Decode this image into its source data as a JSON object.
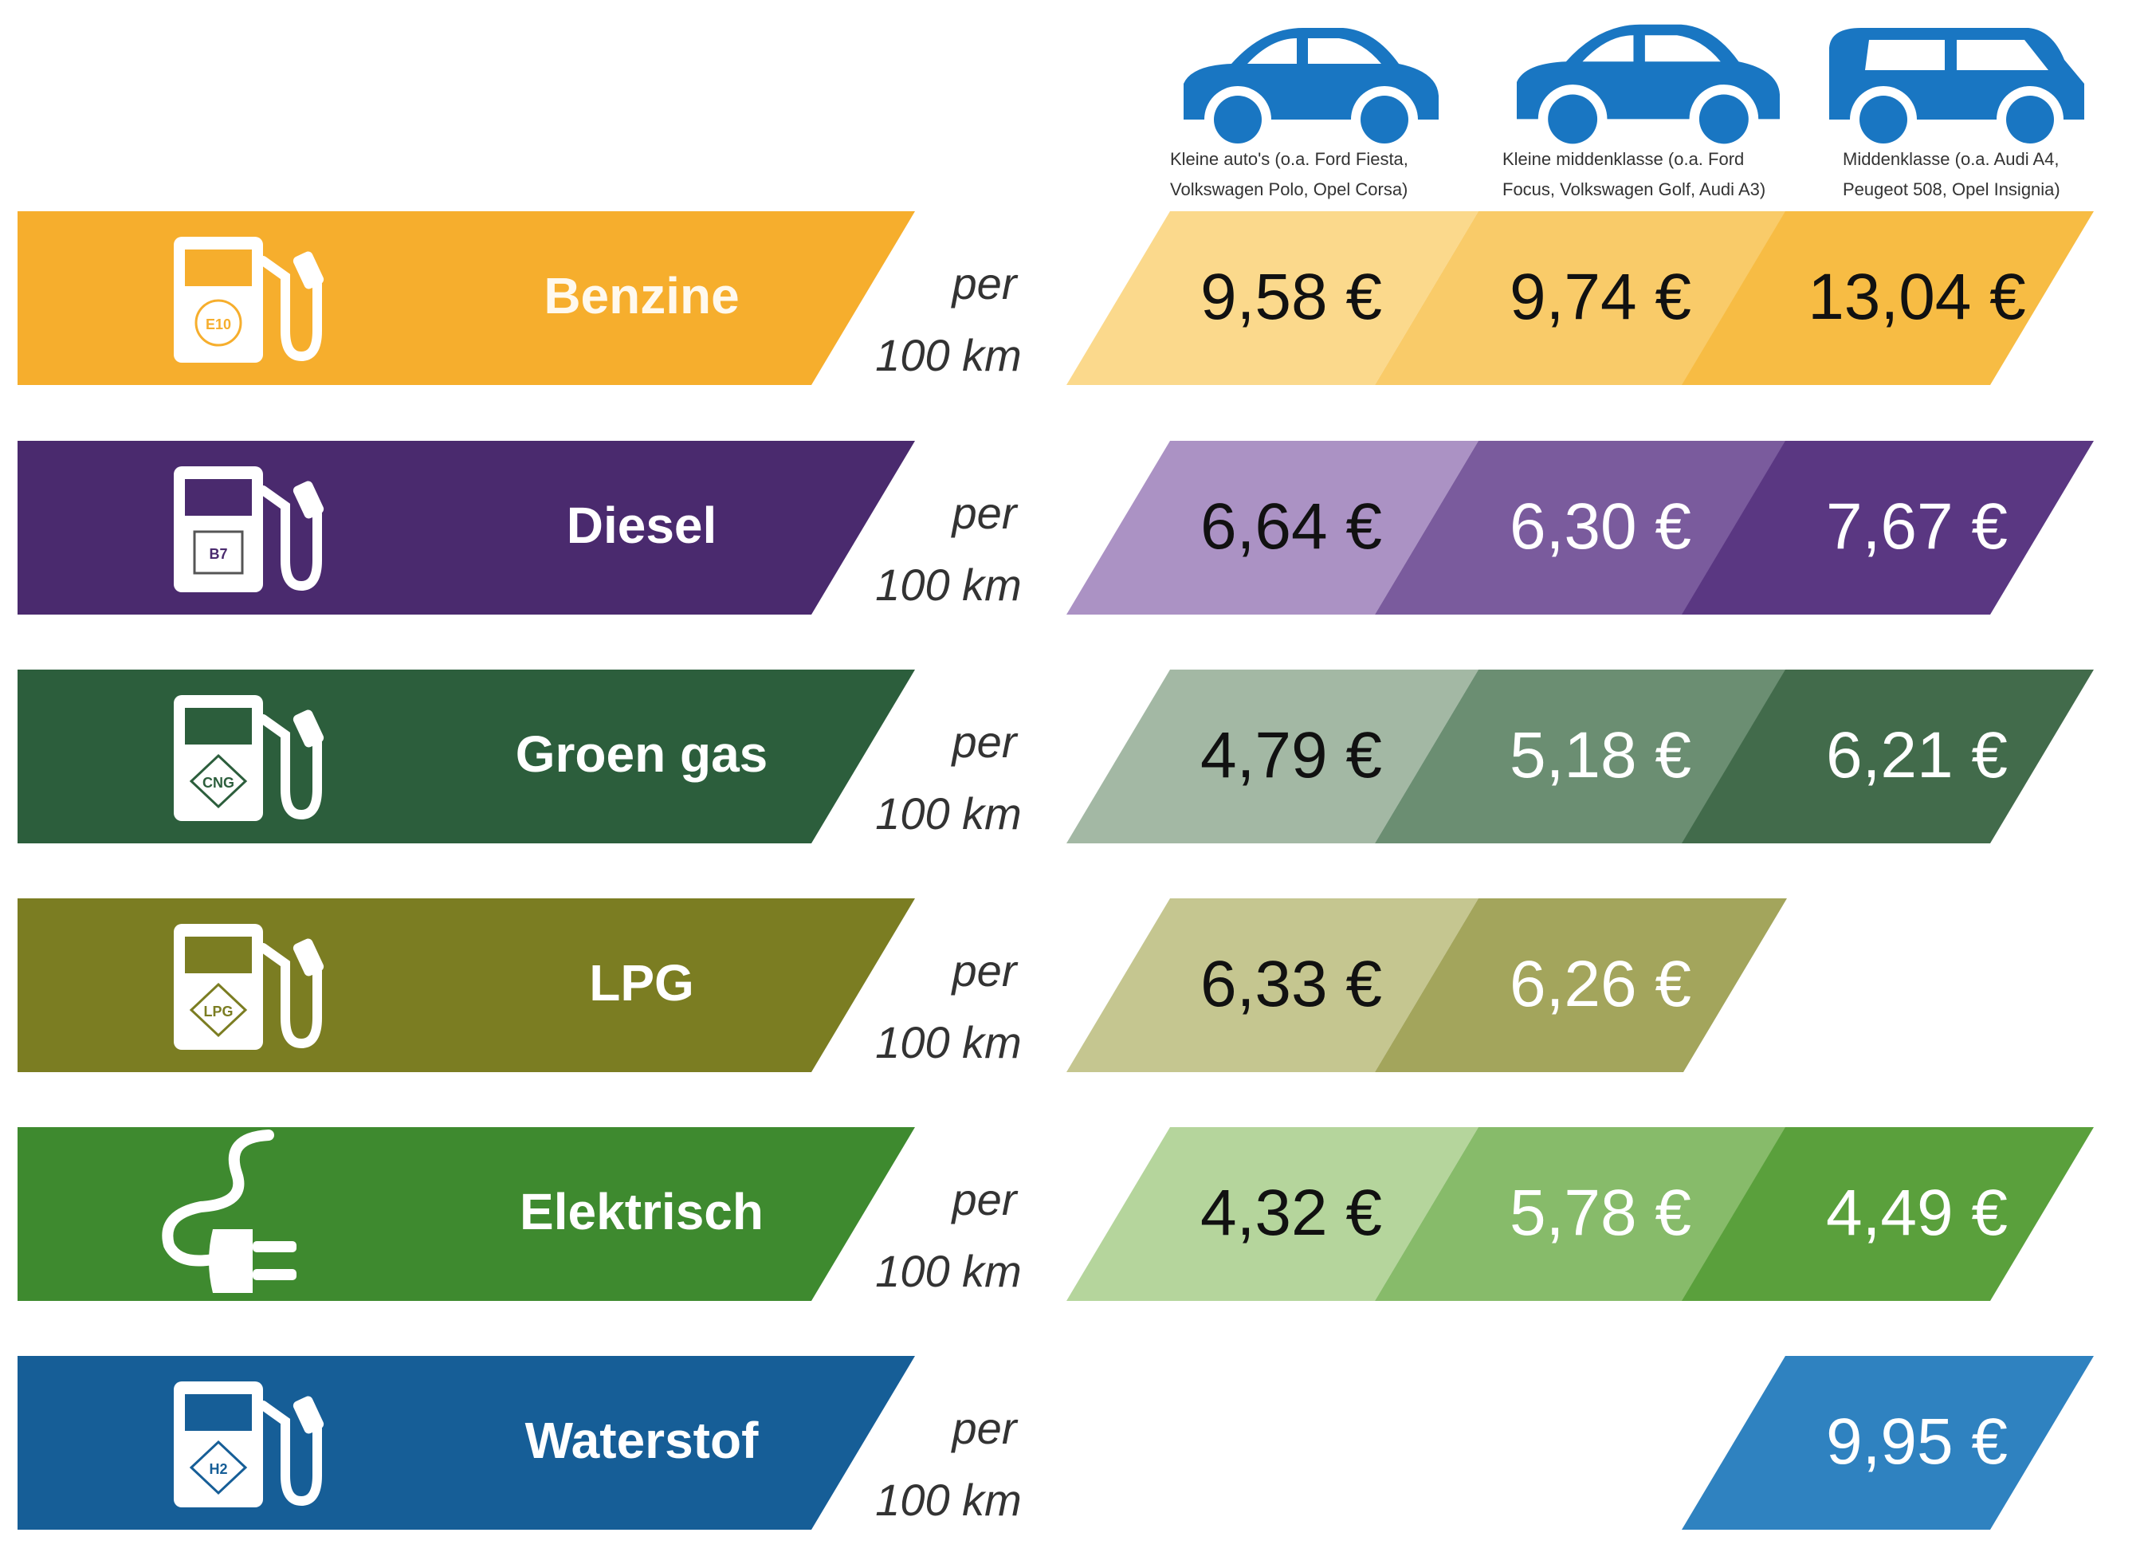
{
  "chart_data": {
    "type": "table",
    "unit_label": "per 100 km",
    "currency": "€",
    "columns": [
      {
        "label_line1": "Kleine auto's (o.a. Ford Fiesta,",
        "label_line2": "Volkswagen Polo, Opel Corsa)",
        "icon": "car-small-icon"
      },
      {
        "label_line1": "Kleine middenklasse (o.a. Ford",
        "label_line2": "Focus, Volkswagen Golf, Audi A3)",
        "icon": "car-compact-icon"
      },
      {
        "label_line1": "Middenklasse (o.a. Audi A4,",
        "label_line2": "Peugeot 508, Opel Insignia)",
        "icon": "car-estate-icon"
      }
    ],
    "rows": [
      {
        "fuel": "Benzine",
        "badge": "E10",
        "icon": "fuel-pump-icon",
        "color": "#f6ae2d",
        "cell_colors": [
          "#fbd98c",
          "#f9cb69",
          "#f7bc44"
        ],
        "text_colors": [
          "#111111",
          "#111111",
          "#111111"
        ],
        "values": [
          "9,58 €",
          "9,74 €",
          "13,04 €"
        ]
      },
      {
        "fuel": "Diesel",
        "badge": "B7",
        "icon": "fuel-pump-icon",
        "color": "#4a2a6e",
        "cell_colors": [
          "#ab92c4",
          "#7a5b9d",
          "#5a3782"
        ],
        "text_colors": [
          "#111111",
          "#ffffff",
          "#ffffff"
        ],
        "values": [
          "6,64 €",
          "6,30 €",
          "7,67 €"
        ]
      },
      {
        "fuel": "Groen gas",
        "badge": "CNG",
        "icon": "fuel-pump-icon",
        "color": "#2c5e3c",
        "cell_colors": [
          "#a3b8a4",
          "#6b8e72",
          "#426b4b"
        ],
        "text_colors": [
          "#111111",
          "#ffffff",
          "#ffffff"
        ],
        "values": [
          "4,79 €",
          "5,18 €",
          "6,21 €"
        ]
      },
      {
        "fuel": "LPG",
        "badge": "LPG",
        "icon": "fuel-pump-icon",
        "color": "#7b7d22",
        "cell_colors": [
          "#c5c690",
          "#a3a55c",
          null
        ],
        "text_colors": [
          "#111111",
          "#ffffff",
          "#ffffff"
        ],
        "values": [
          "6,33 €",
          "6,26 €",
          null
        ]
      },
      {
        "fuel": "Elektrisch",
        "badge": "",
        "icon": "plug-icon",
        "color": "#3e8a2f",
        "cell_colors": [
          "#b5d59c",
          "#87bb6a",
          "#5aa03c"
        ],
        "text_colors": [
          "#111111",
          "#ffffff",
          "#ffffff"
        ],
        "values": [
          "4,32 €",
          "5,78 €",
          "4,49 €"
        ]
      },
      {
        "fuel": "Waterstof",
        "badge": "H2",
        "icon": "fuel-pump-icon",
        "color": "#165e97",
        "cell_colors": [
          null,
          null,
          "#2f82c0"
        ],
        "text_colors": [
          "#ffffff",
          "#ffffff",
          "#ffffff"
        ],
        "values": [
          null,
          null,
          "9,95 €"
        ]
      }
    ],
    "per_label_line1": "per",
    "per_label_line2": "100 km",
    "car_color": "#1976c2"
  }
}
